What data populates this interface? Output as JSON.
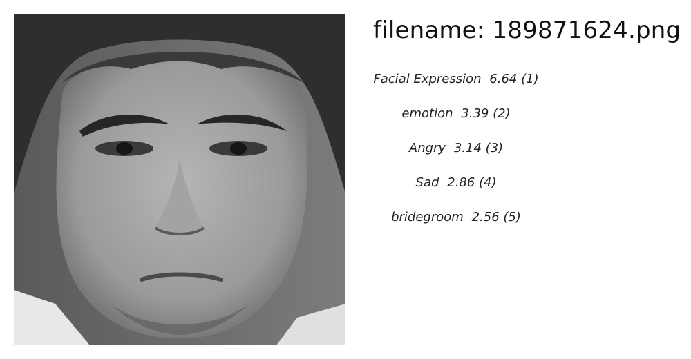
{
  "header": {
    "filename_prefix": "filename: ",
    "filename": "189871624.png"
  },
  "labels": [
    {
      "name": "Facial Expression",
      "score": "6.64",
      "rank": "(1)"
    },
    {
      "name": "emotion",
      "score": "3.39",
      "rank": "(2)"
    },
    {
      "name": "Angry",
      "score": "3.14",
      "rank": "(3)"
    },
    {
      "name": "Sad",
      "score": "2.86",
      "rank": "(4)"
    },
    {
      "name": "bridegroom",
      "score": "2.56",
      "rank": "(5)"
    }
  ]
}
